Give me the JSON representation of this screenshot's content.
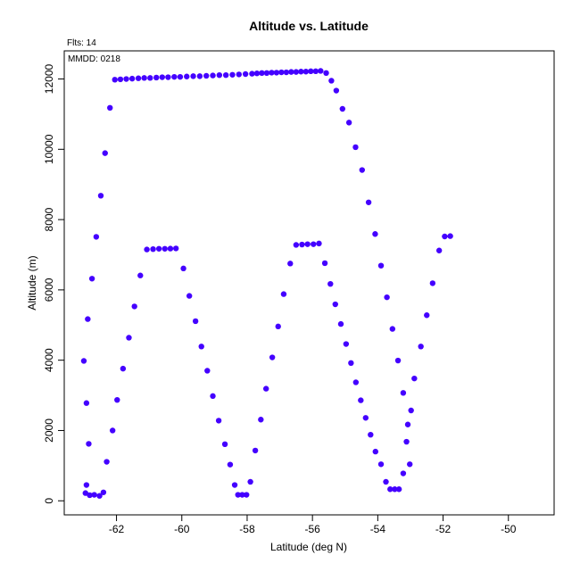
{
  "chart_data": {
    "type": "scatter",
    "title": "Altitude vs. Latitude",
    "xlabel": "Latitude (deg N)",
    "ylabel": "Altitude (m)",
    "annotations": {
      "flights": "Flts: 14",
      "mmdd": "MMDD: 0218"
    },
    "xlim": [
      -63.6,
      -48.6
    ],
    "ylim": [
      -400,
      12800
    ],
    "x_ticks": [
      -62,
      -60,
      -58,
      -56,
      -54,
      -52,
      -50
    ],
    "y_ticks": [
      0,
      2000,
      4000,
      6000,
      8000,
      10000,
      12000
    ],
    "grid": false,
    "legend": "none",
    "point_color": "#4400ff",
    "points": [
      {
        "x": -63.0,
        "y": 3980
      },
      {
        "x": -62.92,
        "y": 2780
      },
      {
        "x": -62.85,
        "y": 1620
      },
      {
        "x": -62.92,
        "y": 450
      },
      {
        "x": -62.95,
        "y": 220
      },
      {
        "x": -62.82,
        "y": 160
      },
      {
        "x": -62.68,
        "y": 170
      },
      {
        "x": -62.52,
        "y": 140
      },
      {
        "x": -62.4,
        "y": 240
      },
      {
        "x": -62.3,
        "y": 1110
      },
      {
        "x": -62.12,
        "y": 2000
      },
      {
        "x": -61.98,
        "y": 2870
      },
      {
        "x": -61.8,
        "y": 3760
      },
      {
        "x": -61.62,
        "y": 4640
      },
      {
        "x": -61.45,
        "y": 5530
      },
      {
        "x": -61.27,
        "y": 6410
      },
      {
        "x": -61.07,
        "y": 7150
      },
      {
        "x": -60.88,
        "y": 7160
      },
      {
        "x": -60.7,
        "y": 7170
      },
      {
        "x": -60.52,
        "y": 7170
      },
      {
        "x": -60.35,
        "y": 7175
      },
      {
        "x": -60.18,
        "y": 7180
      },
      {
        "x": -59.95,
        "y": 6610
      },
      {
        "x": -59.77,
        "y": 5830
      },
      {
        "x": -59.58,
        "y": 5110
      },
      {
        "x": -59.4,
        "y": 4390
      },
      {
        "x": -59.22,
        "y": 3700
      },
      {
        "x": -59.05,
        "y": 2980
      },
      {
        "x": -58.87,
        "y": 2280
      },
      {
        "x": -58.68,
        "y": 1610
      },
      {
        "x": -58.52,
        "y": 1030
      },
      {
        "x": -58.38,
        "y": 450
      },
      {
        "x": -58.28,
        "y": 170
      },
      {
        "x": -58.15,
        "y": 170
      },
      {
        "x": -58.02,
        "y": 170
      },
      {
        "x": -57.9,
        "y": 540
      },
      {
        "x": -57.75,
        "y": 1430
      },
      {
        "x": -57.58,
        "y": 2310
      },
      {
        "x": -57.42,
        "y": 3190
      },
      {
        "x": -57.23,
        "y": 4080
      },
      {
        "x": -57.05,
        "y": 4960
      },
      {
        "x": -56.88,
        "y": 5880
      },
      {
        "x": -56.68,
        "y": 6750
      },
      {
        "x": -56.5,
        "y": 7280
      },
      {
        "x": -56.32,
        "y": 7290
      },
      {
        "x": -56.15,
        "y": 7300
      },
      {
        "x": -55.97,
        "y": 7300
      },
      {
        "x": -55.8,
        "y": 7320
      },
      {
        "x": -55.62,
        "y": 6760
      },
      {
        "x": -55.45,
        "y": 6170
      },
      {
        "x": -55.3,
        "y": 5590
      },
      {
        "x": -55.13,
        "y": 5030
      },
      {
        "x": -54.97,
        "y": 4460
      },
      {
        "x": -54.82,
        "y": 3920
      },
      {
        "x": -54.67,
        "y": 3370
      },
      {
        "x": -54.52,
        "y": 2860
      },
      {
        "x": -54.37,
        "y": 2360
      },
      {
        "x": -54.22,
        "y": 1880
      },
      {
        "x": -54.07,
        "y": 1400
      },
      {
        "x": -53.9,
        "y": 1040
      },
      {
        "x": -53.75,
        "y": 540
      },
      {
        "x": -53.62,
        "y": 330
      },
      {
        "x": -53.48,
        "y": 330
      },
      {
        "x": -53.35,
        "y": 330
      },
      {
        "x": -53.22,
        "y": 780
      },
      {
        "x": -53.12,
        "y": 1680
      },
      {
        "x": -53.02,
        "y": 1040
      },
      {
        "x": -53.08,
        "y": 2170
      },
      {
        "x": -52.98,
        "y": 2570
      },
      {
        "x": -52.88,
        "y": 3480
      },
      {
        "x": -52.68,
        "y": 4390
      },
      {
        "x": -52.5,
        "y": 5280
      },
      {
        "x": -52.32,
        "y": 6190
      },
      {
        "x": -52.12,
        "y": 7120
      },
      {
        "x": -51.95,
        "y": 7520
      },
      {
        "x": -51.78,
        "y": 7530
      },
      {
        "x": -62.88,
        "y": 5170
      },
      {
        "x": -62.75,
        "y": 6320
      },
      {
        "x": -62.62,
        "y": 7510
      },
      {
        "x": -62.48,
        "y": 8680
      },
      {
        "x": -62.35,
        "y": 9890
      },
      {
        "x": -62.2,
        "y": 11180
      },
      {
        "x": -62.05,
        "y": 11980
      },
      {
        "x": -61.88,
        "y": 11990
      },
      {
        "x": -61.7,
        "y": 12000
      },
      {
        "x": -61.52,
        "y": 12010
      },
      {
        "x": -61.33,
        "y": 12020
      },
      {
        "x": -61.15,
        "y": 12030
      },
      {
        "x": -60.97,
        "y": 12030
      },
      {
        "x": -60.78,
        "y": 12040
      },
      {
        "x": -60.6,
        "y": 12050
      },
      {
        "x": -60.42,
        "y": 12050
      },
      {
        "x": -60.23,
        "y": 12060
      },
      {
        "x": -60.05,
        "y": 12060
      },
      {
        "x": -59.85,
        "y": 12070
      },
      {
        "x": -59.65,
        "y": 12080
      },
      {
        "x": -59.45,
        "y": 12080
      },
      {
        "x": -59.25,
        "y": 12090
      },
      {
        "x": -59.05,
        "y": 12100
      },
      {
        "x": -58.85,
        "y": 12110
      },
      {
        "x": -58.65,
        "y": 12110
      },
      {
        "x": -58.45,
        "y": 12120
      },
      {
        "x": -58.25,
        "y": 12130
      },
      {
        "x": -58.05,
        "y": 12140
      },
      {
        "x": -57.85,
        "y": 12150
      },
      {
        "x": -57.7,
        "y": 12160
      },
      {
        "x": -57.55,
        "y": 12170
      },
      {
        "x": -57.4,
        "y": 12170
      },
      {
        "x": -57.25,
        "y": 12180
      },
      {
        "x": -57.1,
        "y": 12180
      },
      {
        "x": -56.95,
        "y": 12190
      },
      {
        "x": -56.8,
        "y": 12190
      },
      {
        "x": -56.65,
        "y": 12200
      },
      {
        "x": -56.5,
        "y": 12200
      },
      {
        "x": -56.35,
        "y": 12210
      },
      {
        "x": -56.2,
        "y": 12210
      },
      {
        "x": -56.05,
        "y": 12220
      },
      {
        "x": -55.9,
        "y": 12220
      },
      {
        "x": -55.75,
        "y": 12230
      },
      {
        "x": -55.58,
        "y": 12170
      },
      {
        "x": -55.42,
        "y": 11950
      },
      {
        "x": -55.27,
        "y": 11670
      },
      {
        "x": -55.08,
        "y": 11150
      },
      {
        "x": -54.88,
        "y": 10760
      },
      {
        "x": -54.68,
        "y": 10060
      },
      {
        "x": -54.48,
        "y": 9410
      },
      {
        "x": -54.28,
        "y": 8490
      },
      {
        "x": -54.08,
        "y": 7590
      },
      {
        "x": -53.9,
        "y": 6690
      },
      {
        "x": -53.72,
        "y": 5790
      },
      {
        "x": -53.55,
        "y": 4890
      },
      {
        "x": -53.38,
        "y": 3990
      },
      {
        "x": -53.22,
        "y": 3070
      }
    ]
  }
}
